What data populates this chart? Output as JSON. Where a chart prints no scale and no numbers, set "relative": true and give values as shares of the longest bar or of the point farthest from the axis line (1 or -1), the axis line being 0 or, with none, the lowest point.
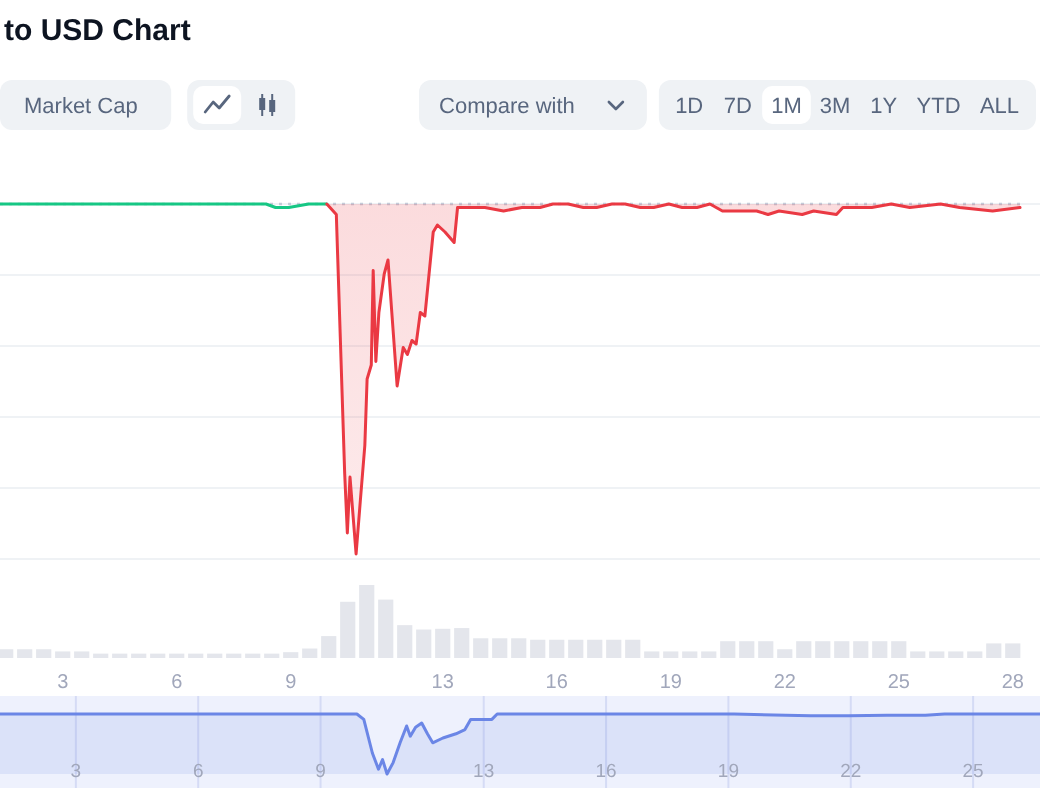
{
  "chart_data": [
    {
      "type": "other",
      "title": "to USD Chart",
      "annotations": [
        "Market Cap",
        "Compare with",
        "1D",
        "7D",
        "1M",
        "3M",
        "1Y",
        "YTD",
        "ALL"
      ]
    },
    {
      "type": "line",
      "relative": true,
      "xlim": [
        1.35,
        28.19
      ],
      "tick_labels": false,
      "grid": "y",
      "ref_lines": [
        {
          "axis": "y",
          "value": 1,
          "color": "#c3cad8",
          "line_style": "dotted"
        }
      ],
      "series": [
        {
          "color": "#16c784",
          "x": [
            1.35,
            2.35,
            3.35,
            4.35,
            5.35,
            6.35,
            7.35,
            8.35,
            8.6,
            8.95,
            9.47,
            9.95
          ],
          "values": [
            1,
            1,
            1,
            1,
            1,
            1,
            1,
            1,
            0.99,
            0.99,
            1,
            1
          ]
        },
        {
          "color": "#ea3943",
          "x": [
            9.95,
            10.2,
            10.42,
            10.49,
            10.56,
            10.72,
            10.83,
            10.95,
            11.01,
            11.12,
            11.17,
            11.24,
            11.32,
            11.46,
            11.56,
            11.66,
            11.8,
            11.96,
            12.07,
            12.19,
            12.3,
            12.41,
            12.53,
            12.64,
            12.75,
            12.86,
            13.06,
            13.3,
            13.39,
            13.63,
            14.11,
            14.6,
            15.08,
            15.56,
            15.9,
            16.3,
            16.7,
            17.05,
            17.45,
            17.8,
            18.2,
            18.55,
            18.95,
            19.3,
            19.69,
            20.03,
            20.36,
            20.77,
            21.26,
            21.56,
            21.85,
            22.46,
            22.76,
            23.36,
            23.53,
            24.29,
            24.8,
            25.29,
            26.1,
            26.6,
            27.47,
            28.19
          ],
          "values": [
            1,
            0.97,
            0.23,
            0.06,
            0.22,
            0,
            0.15,
            0.31,
            0.5,
            0.54,
            0.81,
            0.55,
            0.69,
            0.8,
            0.84,
            0.69,
            0.48,
            0.59,
            0.57,
            0.61,
            0.6,
            0.69,
            0.68,
            0.8,
            0.92,
            0.94,
            0.92,
            0.89,
            0.99,
            0.99,
            0.99,
            0.98,
            0.99,
            0.99,
            1,
            1,
            0.99,
            0.99,
            1,
            1,
            0.99,
            0.99,
            1,
            0.99,
            0.99,
            1,
            0.98,
            0.98,
            0.98,
            0.97,
            0.98,
            0.97,
            0.98,
            0.97,
            0.99,
            0.99,
            1,
            0.99,
            1,
            0.99,
            0.98,
            0.99
          ],
          "lower": [
            1,
            0.97,
            0.23,
            0.06,
            0.22,
            0,
            0.15,
            0.31,
            0.5,
            0.54,
            0.81,
            0.55,
            0.69,
            0.8,
            0.84,
            0.69,
            0.48,
            0.59,
            0.57,
            0.61,
            0.6,
            0.69,
            0.68,
            0.8,
            0.92,
            0.94,
            0.92,
            0.89,
            0.99,
            0.99,
            0.99,
            0.98,
            0.99,
            0.99,
            1,
            1,
            0.99,
            0.99,
            1,
            1,
            0.99,
            0.99,
            1,
            0.99,
            0.99,
            1,
            0.98,
            0.98,
            0.98,
            0.97,
            0.98,
            0.97,
            0.98,
            0.97,
            0.99,
            0.99,
            1,
            0.99,
            1,
            0.99,
            0.98,
            0.99
          ],
          "upper": [
            1,
            1,
            1,
            1,
            1,
            1,
            1,
            1,
            1,
            1,
            1,
            1,
            1,
            1,
            1,
            1,
            1,
            1,
            1,
            1,
            1,
            1,
            1,
            1,
            1,
            1,
            1,
            1,
            1,
            1,
            1,
            1,
            1,
            1,
            1,
            1,
            1,
            1,
            1,
            1,
            1,
            1,
            1,
            1,
            1,
            1,
            1,
            1,
            1,
            1,
            1,
            1,
            1,
            1,
            1,
            1,
            1,
            1,
            1,
            1,
            1,
            1
          ]
        }
      ]
    },
    {
      "type": "bar",
      "relative": true,
      "color": "#e4e6ec",
      "xlim": [
        1.35,
        28.19
      ],
      "xticks": [
        3,
        6,
        9,
        13,
        16,
        19,
        22,
        25,
        28
      ],
      "x": [
        1.5,
        2,
        2.5,
        3,
        3.5,
        4,
        4.5,
        5,
        5.5,
        6,
        6.5,
        7,
        7.5,
        8,
        8.5,
        9,
        9.5,
        10,
        10.5,
        11,
        11.5,
        12,
        12.5,
        13,
        13.5,
        14,
        14.5,
        15,
        15.5,
        16,
        16.5,
        17,
        17.5,
        18,
        18.5,
        19,
        19.5,
        20,
        20.5,
        21,
        21.5,
        22,
        22.5,
        23,
        23.5,
        24,
        24.5,
        25,
        25.5,
        26,
        26.5,
        27,
        27.5,
        28
      ],
      "values": [
        0.12,
        0.12,
        0.12,
        0.09,
        0.09,
        0.06,
        0.06,
        0.06,
        0.06,
        0.06,
        0.06,
        0.06,
        0.06,
        0.06,
        0.06,
        0.08,
        0.13,
        0.3,
        0.77,
        1,
        0.8,
        0.45,
        0.39,
        0.4,
        0.41,
        0.27,
        0.27,
        0.27,
        0.25,
        0.25,
        0.25,
        0.25,
        0.25,
        0.25,
        0.09,
        0.09,
        0.09,
        0.09,
        0.23,
        0.23,
        0.23,
        0.12,
        0.23,
        0.23,
        0.23,
        0.23,
        0.23,
        0.23,
        0.09,
        0.09,
        0.09,
        0.09,
        0.2,
        0.2
      ]
    },
    {
      "type": "area",
      "relative": true,
      "color": "#6b86e6",
      "xlim": [
        1.14,
        26.64
      ],
      "xticks": [
        3,
        6,
        9,
        13,
        16,
        19,
        22,
        25
      ],
      "grid": "x",
      "x": [
        1.14,
        4,
        6.84,
        9.89,
        10.06,
        10.27,
        10.42,
        10.52,
        10.63,
        10.78,
        10.95,
        11.11,
        11.2,
        11.33,
        11.48,
        11.62,
        11.75,
        12,
        12.32,
        12.54,
        12.68,
        13.2,
        13.33,
        16.33,
        19.14,
        20.41,
        21.02,
        21.95,
        22.89,
        23.83,
        24.3,
        25.7,
        26.64
      ],
      "values": [
        1,
        1,
        1,
        1,
        0.91,
        0.35,
        0.08,
        0.24,
        0,
        0.19,
        0.52,
        0.8,
        0.63,
        0.78,
        0.85,
        0.67,
        0.52,
        0.6,
        0.67,
        0.74,
        0.91,
        0.91,
        1,
        1,
        1,
        0.98,
        0.97,
        0.97,
        0.98,
        0.98,
        1,
        1,
        1
      ]
    }
  ]
}
